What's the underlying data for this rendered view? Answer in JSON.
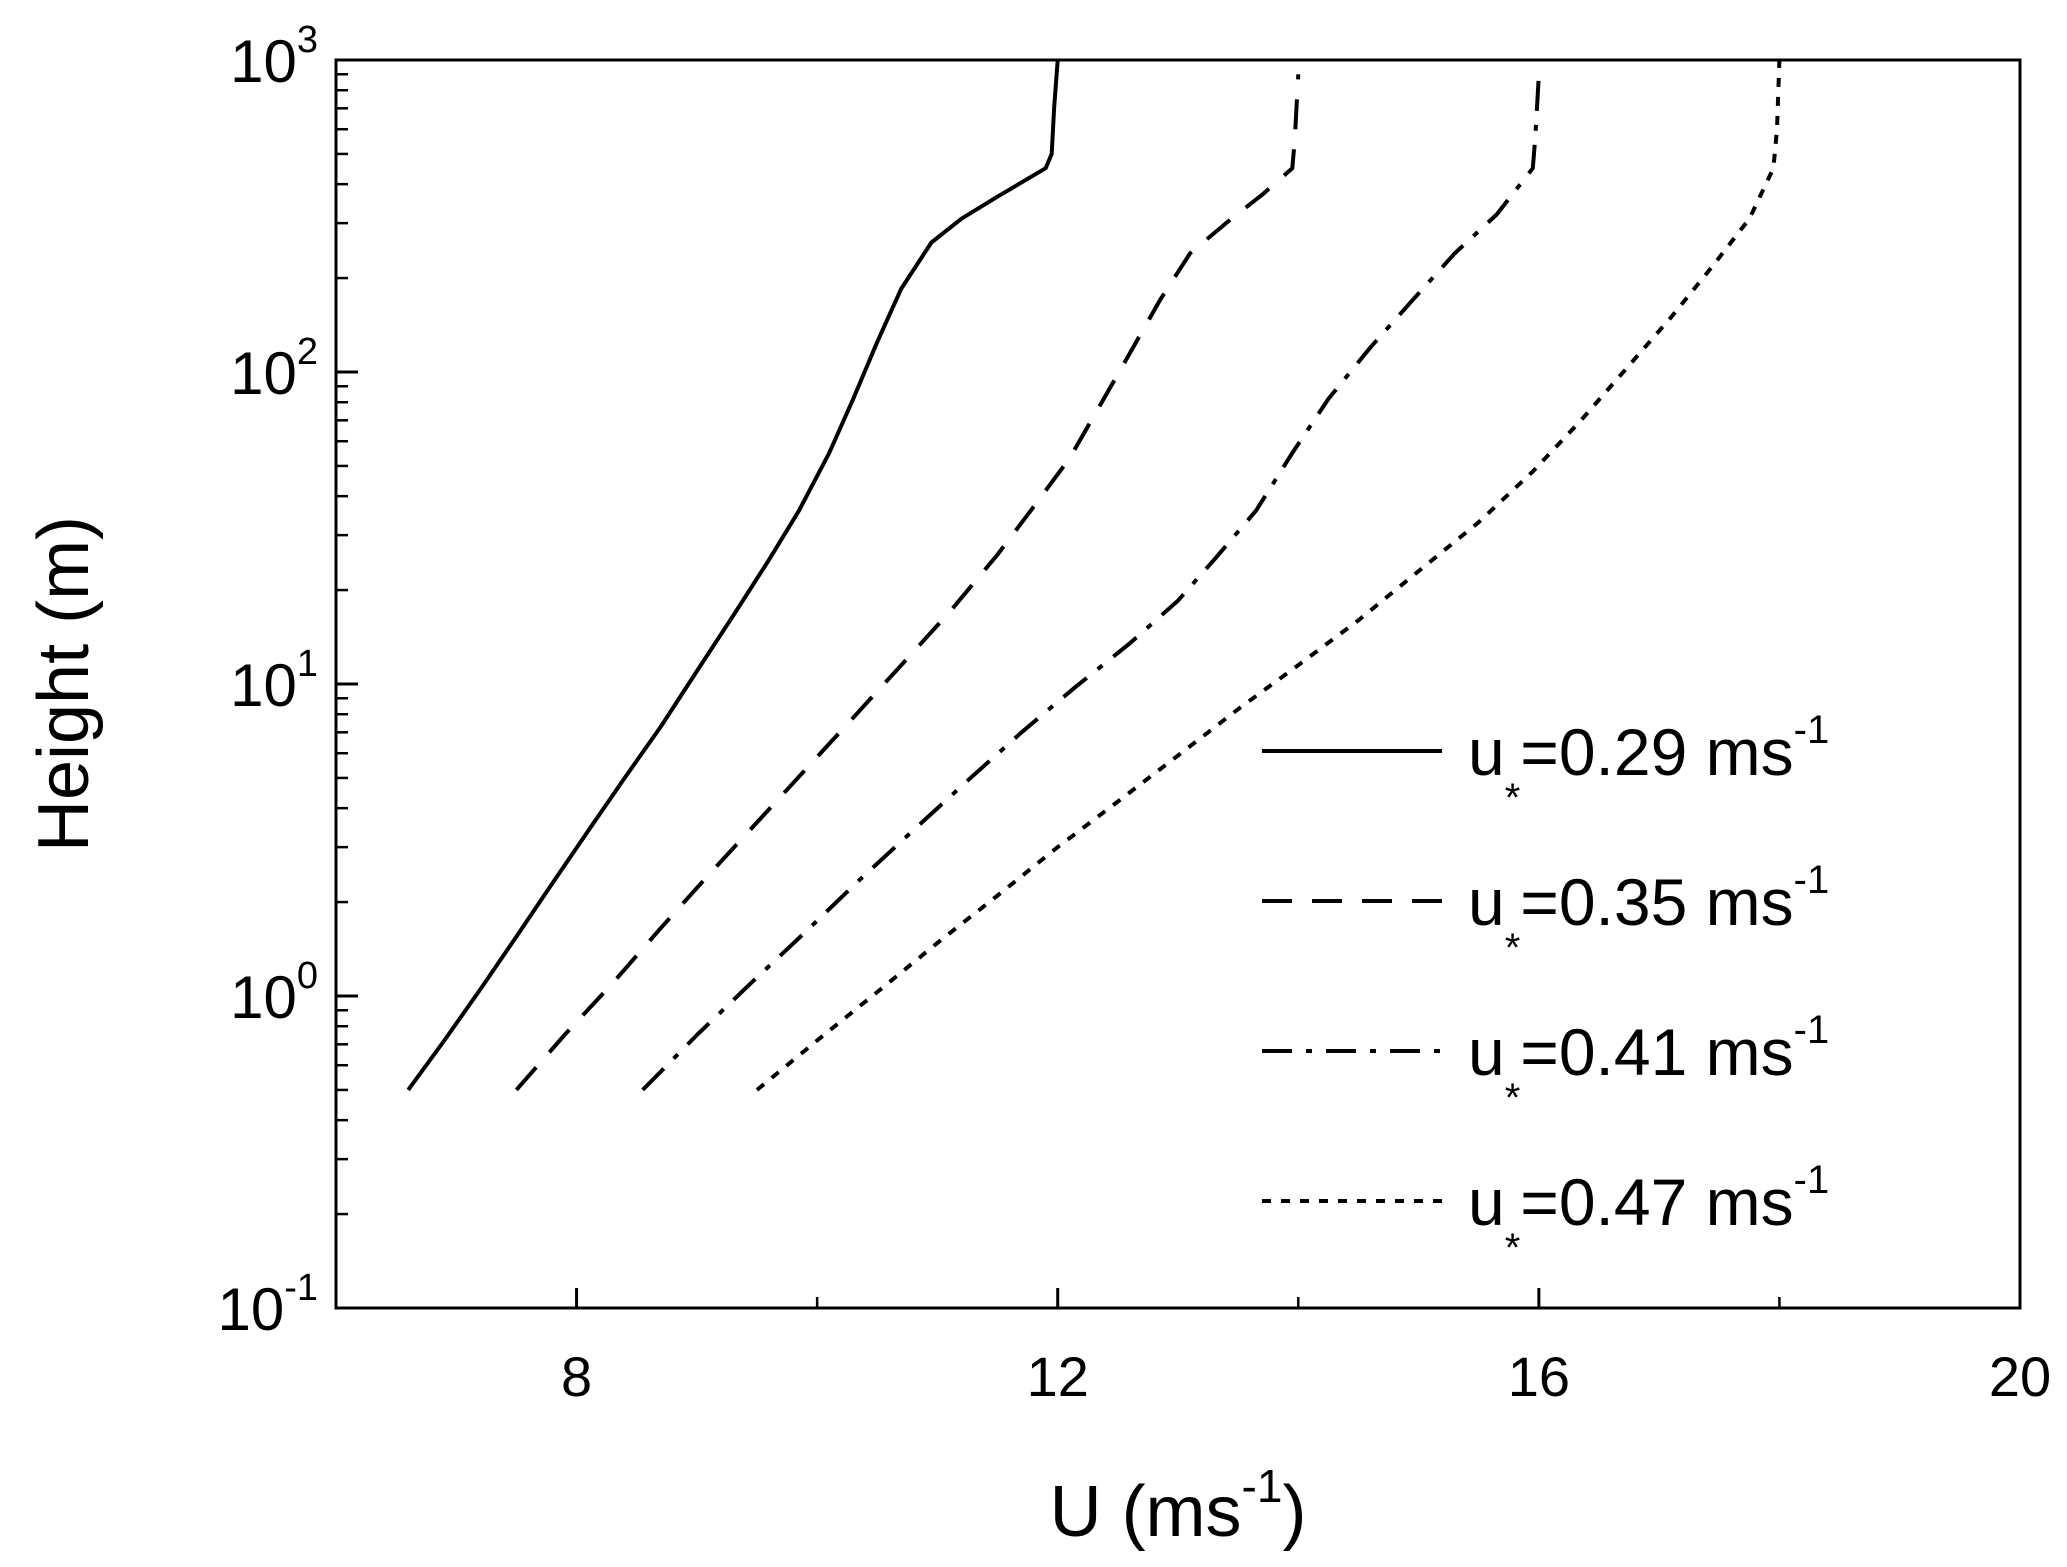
{
  "chart_data": {
    "type": "line",
    "title": "",
    "xlabel": {
      "base": "U (ms",
      "sup": "-1",
      "tail": ")"
    },
    "ylabel": "Height (m)",
    "xscale": "linear",
    "yscale": "log",
    "xlim": [
      6,
      20
    ],
    "ylim": [
      0.1,
      1000
    ],
    "x_ticks": [
      {
        "value": 8,
        "label": "8"
      },
      {
        "value": 12,
        "label": "12"
      },
      {
        "value": 16,
        "label": "16"
      },
      {
        "value": 20,
        "label": "20"
      }
    ],
    "y_ticks": [
      {
        "value": 0.1,
        "base": "10",
        "exp": "-1"
      },
      {
        "value": 1,
        "base": "10",
        "exp": "0"
      },
      {
        "value": 10,
        "base": "10",
        "exp": "1"
      },
      {
        "value": 100,
        "base": "10",
        "exp": "2"
      },
      {
        "value": 1000,
        "base": "10",
        "exp": "3"
      }
    ],
    "grid": false,
    "legend_position": "bottom-right",
    "line_color": "#000000",
    "series": [
      {
        "legend": {
          "u": "u",
          "sub": "*",
          "value": "=0.29 ms",
          "sup": "-1"
        },
        "style": "solid",
        "points": [
          [
            6.6,
            0.5
          ],
          [
            6.9,
            0.72
          ],
          [
            7.2,
            1.05
          ],
          [
            7.5,
            1.55
          ],
          [
            7.8,
            2.3
          ],
          [
            8.1,
            3.4
          ],
          [
            8.4,
            5.0
          ],
          [
            8.7,
            7.3
          ],
          [
            9.0,
            11
          ],
          [
            9.3,
            16.5
          ],
          [
            9.6,
            25
          ],
          [
            9.85,
            36
          ],
          [
            10.1,
            55
          ],
          [
            10.3,
            82
          ],
          [
            10.5,
            125
          ],
          [
            10.7,
            185
          ],
          [
            10.95,
            260
          ],
          [
            11.2,
            310
          ],
          [
            11.5,
            365
          ],
          [
            11.9,
            450
          ],
          [
            11.95,
            500
          ],
          [
            11.97,
            700
          ],
          [
            12.0,
            1000
          ]
        ]
      },
      {
        "legend": {
          "u": "u",
          "sub": "*",
          "value": "=0.35 ms",
          "sup": "-1"
        },
        "style": "dashed",
        "points": [
          [
            7.5,
            0.5
          ],
          [
            7.9,
            0.75
          ],
          [
            8.3,
            1.1
          ],
          [
            8.7,
            1.65
          ],
          [
            9.1,
            2.45
          ],
          [
            9.5,
            3.6
          ],
          [
            9.9,
            5.3
          ],
          [
            10.3,
            7.8
          ],
          [
            10.7,
            11.5
          ],
          [
            11.1,
            17
          ],
          [
            11.5,
            26
          ],
          [
            11.8,
            37
          ],
          [
            12.1,
            53
          ],
          [
            12.35,
            78
          ],
          [
            12.6,
            115
          ],
          [
            12.85,
            170
          ],
          [
            13.1,
            240
          ],
          [
            13.4,
            300
          ],
          [
            13.7,
            370
          ],
          [
            13.95,
            450
          ],
          [
            13.97,
            550
          ],
          [
            14.0,
            900
          ]
        ]
      },
      {
        "legend": {
          "u": "u",
          "sub": "*",
          "value": "=0.41 ms",
          "sup": "-1"
        },
        "style": "dashdot",
        "points": [
          [
            8.55,
            0.5
          ],
          [
            9.0,
            0.75
          ],
          [
            9.45,
            1.1
          ],
          [
            9.9,
            1.6
          ],
          [
            10.35,
            2.35
          ],
          [
            10.8,
            3.4
          ],
          [
            11.25,
            4.9
          ],
          [
            11.7,
            7.0
          ],
          [
            12.15,
            9.8
          ],
          [
            12.6,
            13.5
          ],
          [
            13.0,
            18.5
          ],
          [
            13.3,
            25
          ],
          [
            13.65,
            36
          ],
          [
            13.95,
            55
          ],
          [
            14.25,
            82
          ],
          [
            14.6,
            120
          ],
          [
            14.95,
            170
          ],
          [
            15.3,
            240
          ],
          [
            15.65,
            320
          ],
          [
            15.95,
            450
          ],
          [
            15.97,
            560
          ],
          [
            16.0,
            900
          ]
        ]
      },
      {
        "legend": {
          "u": "u",
          "sub": "*",
          "value": "=0.47 ms",
          "sup": "-1"
        },
        "style": "dotted",
        "points": [
          [
            9.5,
            0.5
          ],
          [
            10.0,
            0.72
          ],
          [
            10.5,
            1.03
          ],
          [
            11.0,
            1.48
          ],
          [
            11.5,
            2.1
          ],
          [
            12.0,
            3.0
          ],
          [
            12.5,
            4.2
          ],
          [
            13.0,
            5.9
          ],
          [
            13.5,
            8.3
          ],
          [
            14.0,
            11.5
          ],
          [
            14.5,
            16
          ],
          [
            15.0,
            23
          ],
          [
            15.5,
            33
          ],
          [
            15.95,
            48
          ],
          [
            16.35,
            70
          ],
          [
            16.75,
            105
          ],
          [
            17.1,
            150
          ],
          [
            17.45,
            220
          ],
          [
            17.75,
            310
          ],
          [
            17.95,
            450
          ],
          [
            17.98,
            600
          ],
          [
            18.0,
            1000
          ]
        ]
      }
    ]
  }
}
